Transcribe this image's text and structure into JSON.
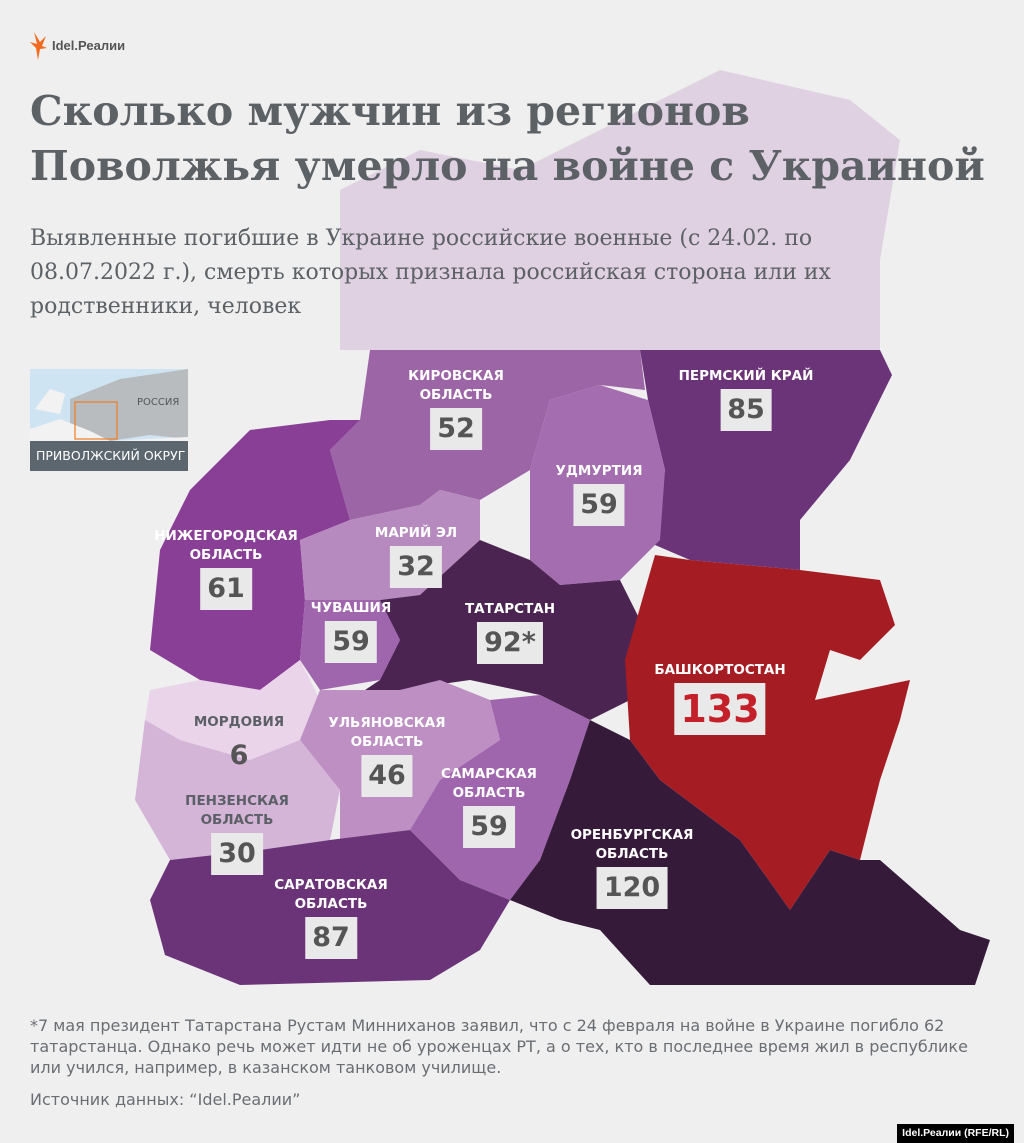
{
  "logo": {
    "text": "Idel.Реалии",
    "brand_color": "#f26a21"
  },
  "title": "Сколько мужчин из регионов Поволжья умерло на войне с Украиной",
  "subtitle": "Выявленные погибшие в Украине российские военные (с 24.02. по 08.07.2022 г.), смерть которых признала российская сторона или их родственники, человек",
  "inset": {
    "country_label": "РОССИЯ",
    "district_label": "ПРИВОЛЖСКИЙ ОКРУГ",
    "highlight_color": "#f07d22"
  },
  "regions": [
    {
      "name": "КИРОВСКАЯ\nОБЛАСТЬ",
      "value": "52",
      "color": "#9c65a6"
    },
    {
      "name": "ПЕРМСКИЙ КРАЙ",
      "value": "85",
      "color": "#6b3479"
    },
    {
      "name": "УДМУРТИЯ",
      "value": "59",
      "color": "#a46db0"
    },
    {
      "name": "НИЖЕГОРОДСКАЯ\nОБЛАСТЬ",
      "value": "61",
      "color": "#8a3f96"
    },
    {
      "name": "МАРИЙ ЭЛ",
      "value": "32",
      "color": "#b68abf"
    },
    {
      "name": "ЧУВАШИЯ",
      "value": "59",
      "color": "#a066ad"
    },
    {
      "name": "ТАТАРСТАН",
      "value": "92*",
      "color": "#4b2451"
    },
    {
      "name": "БАШКОРТОСТАН",
      "value": "133",
      "color": "#a51c22"
    },
    {
      "name": "МОРДОВИЯ",
      "value": "6",
      "color": "#e9d4e9"
    },
    {
      "name": "ПЕНЗЕНСКАЯ\nОБЛАСТЬ",
      "value": "30",
      "color": "#d4b4d7"
    },
    {
      "name": "УЛЬЯНОВСКАЯ\nОБЛАСТЬ",
      "value": "46",
      "color": "#bd8fc3"
    },
    {
      "name": "САМАРСКАЯ\nОБЛАСТЬ",
      "value": "59",
      "color": "#a066ad"
    },
    {
      "name": "САРАТОВСКАЯ\nОБЛАСТЬ",
      "value": "87",
      "color": "#6b3479"
    },
    {
      "name": "ОРЕНБУРГСКАЯ\nОБЛАСТЬ",
      "value": "120",
      "color": "#351a39"
    }
  ],
  "footnote": "*7 мая президент Татарстана Рустам Минниханов заявил, что с 24 февраля на войне в Украине погибло 62 татарстанца. Однако речь может идти не об уроженцах РТ, а о тех, кто в последнее время жил в республике или учился, например, в казанском танковом училище.",
  "source": "Источник данных: “Idel.Реалии”",
  "credit": "Idel.Реалии (RFE/RL)"
}
